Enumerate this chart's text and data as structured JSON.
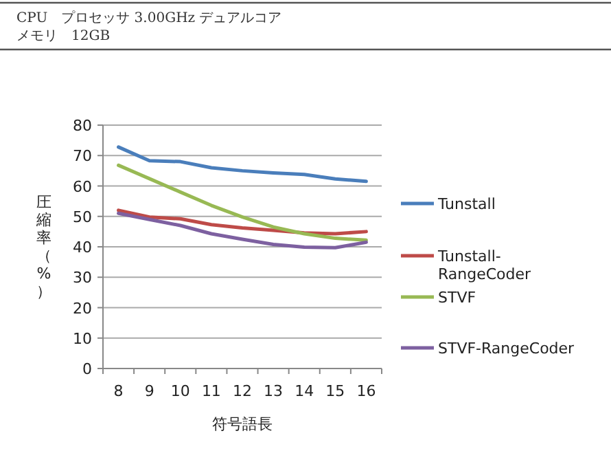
{
  "chart_data": {
    "type": "line",
    "xlabel": "符号語長",
    "ylabel": "圧縮率（%）",
    "annotations": [
      "CPU　プロセッサ 3.00GHz デュアルコア",
      "メモリ　12GB"
    ],
    "categories": [
      "8",
      "9",
      "10",
      "11",
      "12",
      "13",
      "14",
      "15",
      "16"
    ],
    "series": [
      {
        "name": "Tunstall",
        "color": "#4a7ebb",
        "values": [
          72.8,
          68.3,
          68,
          66,
          65,
          64.3,
          63.8,
          62.3,
          61.5
        ]
      },
      {
        "name": "Tunstall-RangeCoder",
        "color": "#be4b48",
        "values": [
          52,
          49.8,
          49.2,
          47.3,
          46.2,
          45.4,
          44.6,
          44.3,
          45
        ]
      },
      {
        "name": "STVF",
        "color": "#98b954",
        "values": [
          66.8,
          62.4,
          58,
          53.6,
          49.8,
          46.5,
          44.3,
          42.8,
          42.2
        ]
      },
      {
        "name": "STVF-RangeCoder",
        "color": "#7d60a0",
        "values": [
          51,
          49,
          47,
          44.3,
          42.5,
          40.8,
          39.9,
          39.7,
          41.5
        ]
      }
    ],
    "ylim": [
      0,
      80
    ],
    "yticks": [
      0,
      10,
      20,
      30,
      40,
      50,
      60,
      70,
      80
    ],
    "grid": "y",
    "legend": "right",
    "marker": "none",
    "line_style": "solid"
  }
}
